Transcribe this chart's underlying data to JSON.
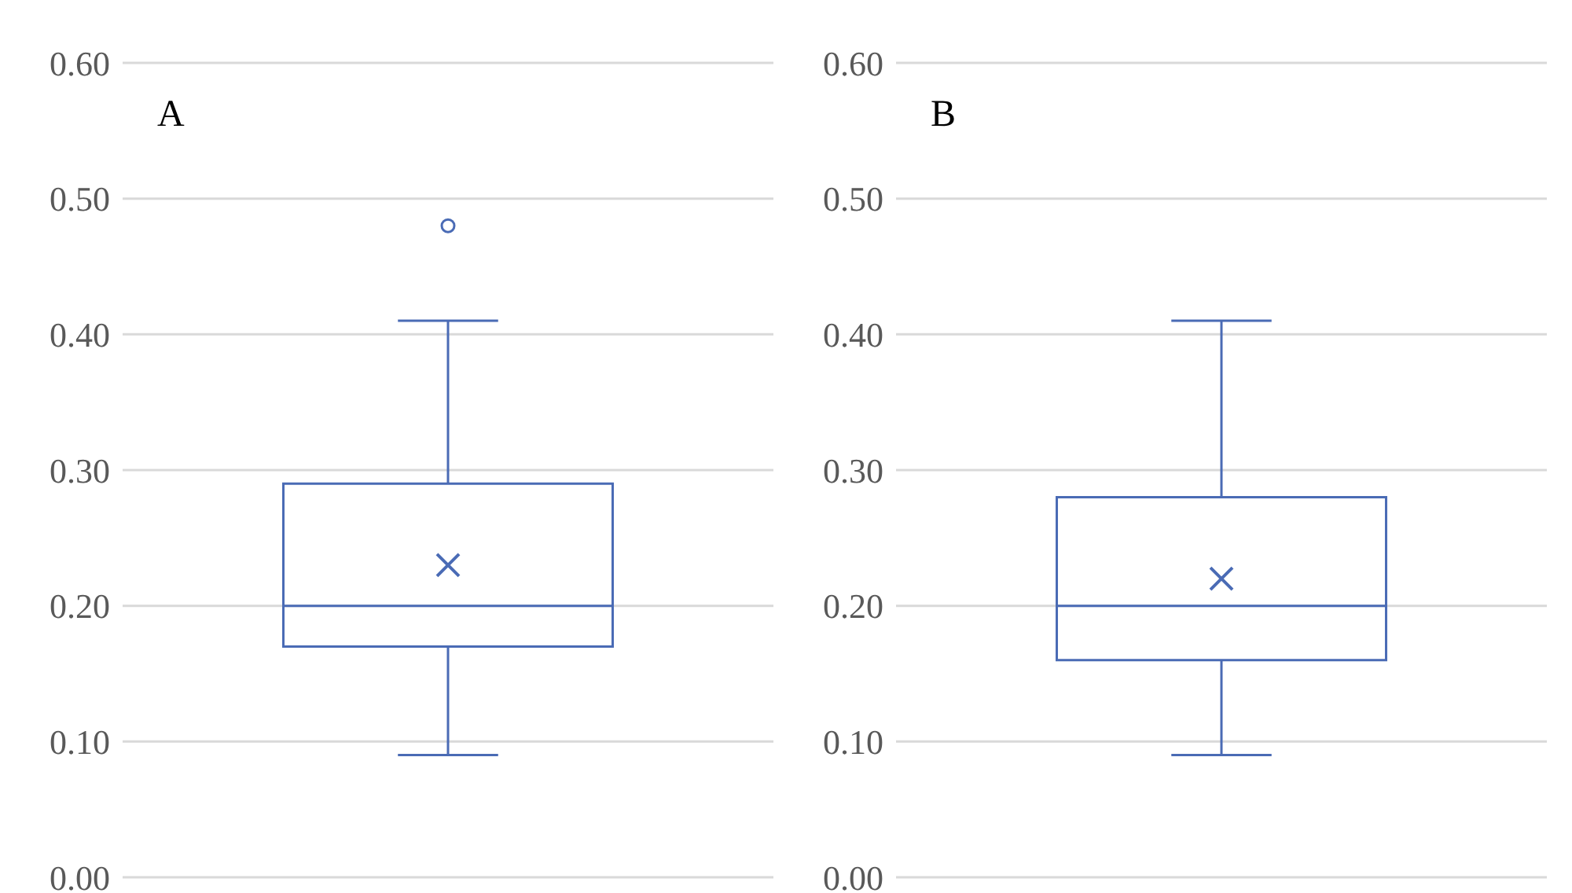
{
  "chart_data": [
    {
      "type": "box",
      "title": "A",
      "categories": [
        null
      ],
      "color": "#4a6bb5",
      "boxes": [
        {
          "low": 0.09,
          "q1": 0.17,
          "median": 0.2,
          "q3": 0.29,
          "high": 0.41,
          "mean": 0.23,
          "outliers": [
            0.48
          ]
        }
      ],
      "ylim": [
        0,
        0.6
      ],
      "yticks": [
        {
          "value": 0,
          "label": "0.00"
        },
        {
          "value": 0.1,
          "label": "0.10"
        },
        {
          "value": 0.2,
          "label": "0.20"
        },
        {
          "value": 0.3,
          "label": "0.30"
        },
        {
          "value": 0.4,
          "label": "0.40"
        },
        {
          "value": 0.5,
          "label": "0.50"
        },
        {
          "value": 0.6,
          "label": "0.60"
        }
      ],
      "grid": "y",
      "tick_labels": "y"
    },
    {
      "type": "box",
      "title": "B",
      "categories": [
        null
      ],
      "color": "#4a6bb5",
      "boxes": [
        {
          "low": 0.09,
          "q1": 0.16,
          "median": 0.2,
          "q3": 0.28,
          "high": 0.41,
          "mean": 0.22
        }
      ],
      "ylim": [
        0,
        0.6
      ],
      "yticks": [
        {
          "value": 0,
          "label": "0.00"
        },
        {
          "value": 0.1,
          "label": "0.10"
        },
        {
          "value": 0.2,
          "label": "0.20"
        },
        {
          "value": 0.3,
          "label": "0.30"
        },
        {
          "value": 0.4,
          "label": "0.40"
        },
        {
          "value": 0.5,
          "label": "0.50"
        },
        {
          "value": 0.6,
          "label": "0.60"
        }
      ],
      "grid": "y",
      "tick_labels": "y"
    }
  ]
}
